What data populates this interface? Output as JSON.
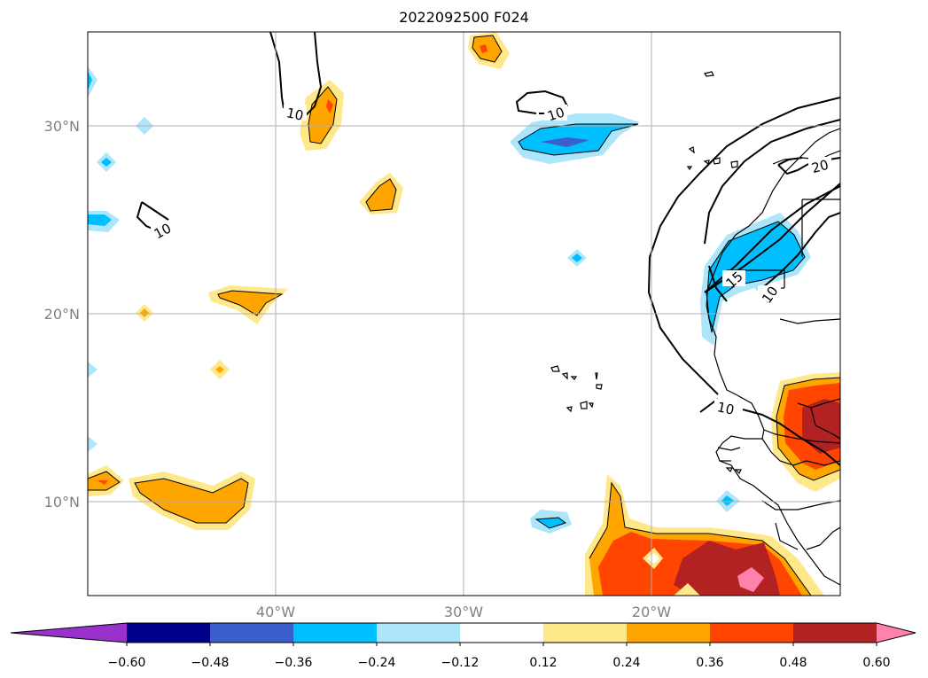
{
  "title": "2022092500 F024",
  "map": {
    "latitude_labels": [
      "30°N",
      "20°N",
      "10°N"
    ],
    "longitude_labels": [
      "40°W",
      "30°W",
      "20°W"
    ],
    "contour_labels": [
      "10",
      "10",
      "10",
      "20",
      "15",
      "10",
      "10"
    ],
    "grid": true
  },
  "colorbar": {
    "ticks": [
      "−0.60",
      "−0.48",
      "−0.36",
      "−0.24",
      "−0.12",
      "0.12",
      "0.24",
      "0.36",
      "0.48",
      "0.60"
    ],
    "colors": [
      "#9932cc",
      "#00008b",
      "#3a5fcd",
      "#00bfff",
      "#ade6fa",
      "#ffffff",
      "#ffe88a",
      "#ffa500",
      "#ff4500",
      "#b22222",
      "#ff82ab"
    ],
    "extend": "both"
  }
}
